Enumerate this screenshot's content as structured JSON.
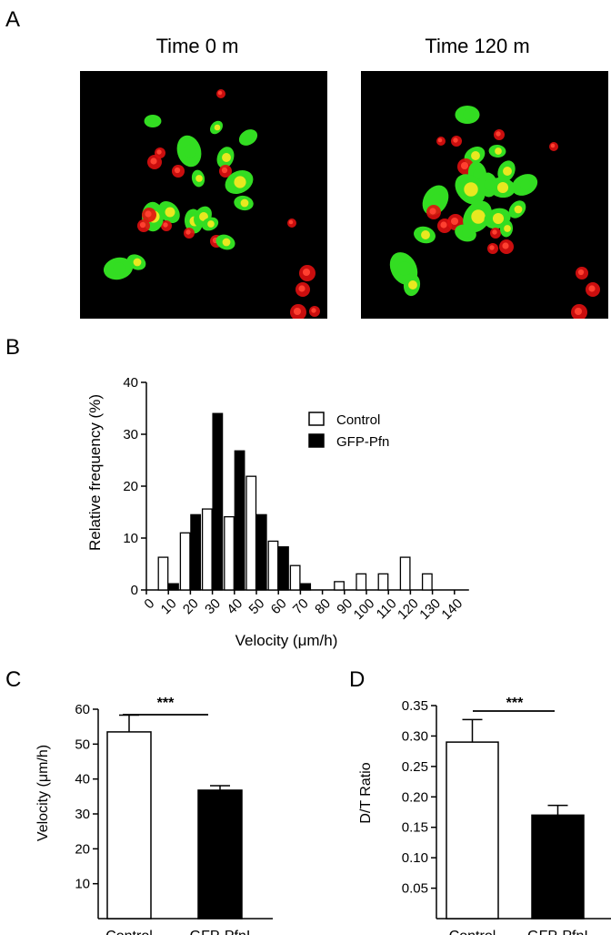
{
  "panels": {
    "A": {
      "letter": "A",
      "images": [
        {
          "title": "Time 0 m"
        },
        {
          "title": "Time 120 m"
        }
      ],
      "colors": {
        "gfp": "#33dd22",
        "merge": "#e8e820",
        "red": "#e01010"
      }
    },
    "B": {
      "letter": "B"
    },
    "C": {
      "letter": "C"
    },
    "D": {
      "letter": "D"
    }
  },
  "chart_data": [
    {
      "id": "B",
      "type": "bar",
      "categories": [
        "0",
        "10",
        "20",
        "30",
        "40",
        "50",
        "60",
        "70",
        "80",
        "90",
        "100",
        "110",
        "120",
        "130",
        "140"
      ],
      "series": [
        {
          "name": "Control",
          "fill": "#ffffff",
          "values": [
            null,
            6.3,
            11.0,
            15.6,
            14.1,
            21.9,
            9.4,
            4.7,
            0,
            1.6,
            3.1,
            3.1,
            6.3,
            3.1,
            0
          ]
        },
        {
          "name": "GFP-Pfn",
          "fill": "#000000",
          "values": [
            null,
            1.2,
            14.5,
            34.0,
            26.8,
            14.5,
            8.3,
            1.2,
            0,
            0,
            0,
            0,
            0,
            0,
            0
          ]
        }
      ],
      "xlabel": "Velocity (μm/h)",
      "ylabel": "Relative frequency (%)",
      "ylim": [
        0,
        40
      ],
      "yticks": [
        0,
        10,
        20,
        30,
        40
      ],
      "legend": "top-right",
      "grid": false
    },
    {
      "id": "C",
      "type": "bar",
      "categories": [
        "Control",
        "GFP-PfnI"
      ],
      "values": [
        53.5,
        36.8
      ],
      "errors": [
        4.8,
        1.3
      ],
      "fills": [
        "#ffffff",
        "#000000"
      ],
      "ylabel": "Velocity (μm/h)",
      "ylim": [
        0,
        60
      ],
      "yticks": [
        10,
        20,
        30,
        40,
        50,
        60
      ],
      "significance": "***",
      "grid": false
    },
    {
      "id": "D",
      "type": "bar",
      "categories": [
        "Control",
        "GFP-PfnI"
      ],
      "values": [
        0.29,
        0.17
      ],
      "errors": [
        0.037,
        0.016
      ],
      "fills": [
        "#ffffff",
        "#000000"
      ],
      "ylabel": "D/T Ratio",
      "ylim": [
        0,
        0.35
      ],
      "yticks": [
        0.05,
        0.1,
        0.15,
        0.2,
        0.25,
        0.3,
        0.35
      ],
      "yticklabels": [
        "0.05",
        "0.10",
        "0.15",
        "0.20",
        "0.25",
        "0.30",
        "0.35"
      ],
      "significance": "***",
      "grid": false
    }
  ]
}
